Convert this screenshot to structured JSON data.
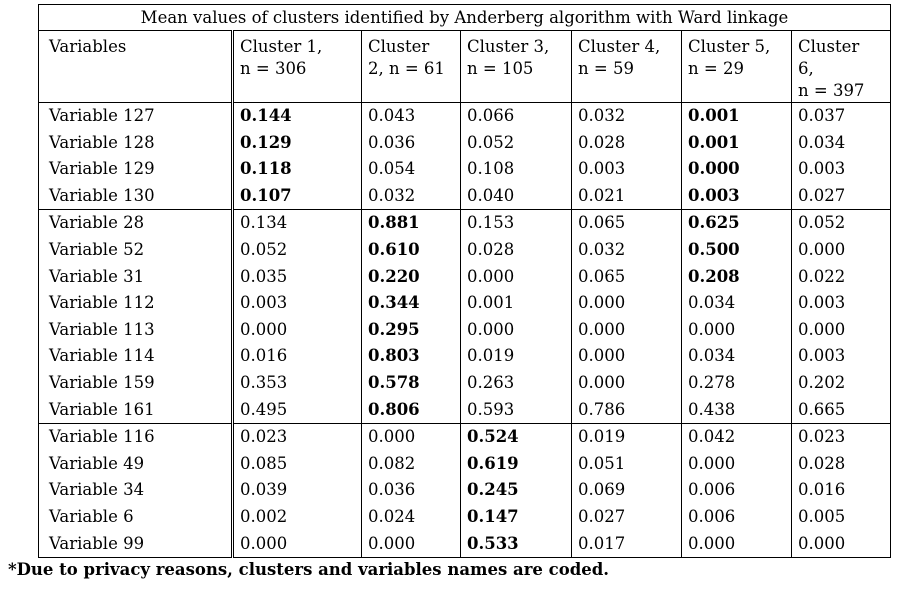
{
  "caption": "Mean values of clusters identified by Anderberg algorithm with Ward linkage",
  "headers": [
    {
      "lines": [
        "Variables"
      ]
    },
    {
      "lines": [
        "Cluster 1,",
        "n = 306"
      ]
    },
    {
      "lines": [
        "Cluster",
        "2, n = 61"
      ]
    },
    {
      "lines": [
        "Cluster 3,",
        "n = 105"
      ]
    },
    {
      "lines": [
        "Cluster 4,",
        "n = 59"
      ]
    },
    {
      "lines": [
        "Cluster 5,",
        "n = 29"
      ]
    },
    {
      "lines": [
        "Cluster",
        "6,",
        "n = 397"
      ]
    }
  ],
  "groups": [
    {
      "rows": [
        {
          "name": "Variable 127",
          "values": [
            "0.144",
            "0.043",
            "0.066",
            "0.032",
            "0.001",
            "0.037"
          ],
          "bold": [
            0,
            4
          ]
        },
        {
          "name": "Variable 128",
          "values": [
            "0.129",
            "0.036",
            "0.052",
            "0.028",
            "0.001",
            "0.034"
          ],
          "bold": [
            0,
            4
          ]
        },
        {
          "name": "Variable 129",
          "values": [
            "0.118",
            "0.054",
            "0.108",
            "0.003",
            "0.000",
            "0.003"
          ],
          "bold": [
            0,
            4
          ]
        },
        {
          "name": "Variable 130",
          "values": [
            "0.107",
            "0.032",
            "0.040",
            "0.021",
            "0.003",
            "0.027"
          ],
          "bold": [
            0,
            4
          ]
        }
      ]
    },
    {
      "rows": [
        {
          "name": "Variable 28",
          "values": [
            "0.134",
            "0.881",
            "0.153",
            "0.065",
            "0.625",
            "0.052"
          ],
          "bold": [
            1,
            4
          ]
        },
        {
          "name": "Variable 52",
          "values": [
            "0.052",
            "0.610",
            "0.028",
            "0.032",
            "0.500",
            "0.000"
          ],
          "bold": [
            1,
            4
          ]
        },
        {
          "name": "Variable 31",
          "values": [
            "0.035",
            "0.220",
            "0.000",
            "0.065",
            "0.208",
            "0.022"
          ],
          "bold": [
            1,
            4
          ]
        },
        {
          "name": "Variable 112",
          "values": [
            "0.003",
            "0.344",
            "0.001",
            "0.000",
            "0.034",
            "0.003"
          ],
          "bold": [
            1
          ]
        },
        {
          "name": "Variable 113",
          "values": [
            "0.000",
            "0.295",
            "0.000",
            "0.000",
            "0.000",
            "0.000"
          ],
          "bold": [
            1
          ]
        },
        {
          "name": "Variable 114",
          "values": [
            "0.016",
            "0.803",
            "0.019",
            "0.000",
            "0.034",
            "0.003"
          ],
          "bold": [
            1
          ]
        },
        {
          "name": "Variable 159",
          "values": [
            "0.353",
            "0.578",
            "0.263",
            "0.000",
            "0.278",
            "0.202"
          ],
          "bold": [
            1
          ]
        },
        {
          "name": "Variable 161",
          "values": [
            "0.495",
            "0.806",
            "0.593",
            "0.786",
            "0.438",
            "0.665"
          ],
          "bold": [
            1
          ]
        }
      ]
    },
    {
      "rows": [
        {
          "name": "Variable 116",
          "values": [
            "0.023",
            "0.000",
            "0.524",
            "0.019",
            "0.042",
            "0.023"
          ],
          "bold": [
            2
          ]
        },
        {
          "name": "Variable 49",
          "values": [
            "0.085",
            "0.082",
            "0.619",
            "0.051",
            "0.000",
            "0.028"
          ],
          "bold": [
            2
          ]
        },
        {
          "name": "Variable 34",
          "values": [
            "0.039",
            "0.036",
            "0.245",
            "0.069",
            "0.006",
            "0.016"
          ],
          "bold": [
            2
          ]
        },
        {
          "name": "Variable 6",
          "values": [
            "0.002",
            "0.024",
            "0.147",
            "0.027",
            "0.006",
            "0.005"
          ],
          "bold": [
            2
          ]
        },
        {
          "name": "Variable 99",
          "values": [
            "0.000",
            "0.000",
            "0.533",
            "0.017",
            "0.000",
            "0.000"
          ],
          "bold": [
            2
          ]
        }
      ]
    }
  ],
  "footnote": "*Due to privacy reasons, clusters and variables names are coded."
}
